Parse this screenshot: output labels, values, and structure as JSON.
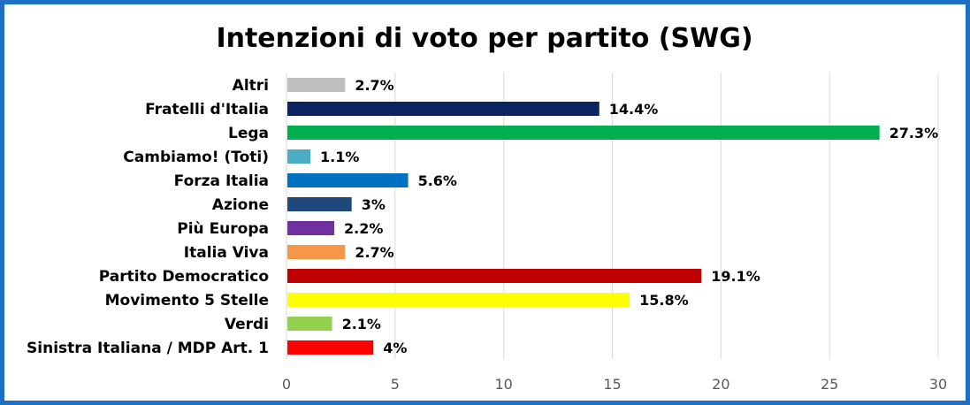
{
  "chart_data": {
    "type": "bar",
    "orientation": "horizontal",
    "title": "Intenzioni di voto per partito (SWG)",
    "categories": [
      "Altri",
      "Fratelli d'Italia",
      "Lega",
      "Cambiamo! (Toti)",
      "Forza Italia",
      "Azione",
      "Più Europa",
      "Italia Viva",
      "Partito Democratico",
      "Movimento 5 Stelle",
      "Verdi",
      "Sinistra Italiana / MDP Art. 1"
    ],
    "values": [
      2.7,
      14.4,
      27.3,
      1.1,
      5.6,
      3,
      2.2,
      2.7,
      19.1,
      15.8,
      2.1,
      4
    ],
    "labels": [
      "2.7%",
      "14.4%",
      "27.3%",
      "1.1%",
      "5.6%",
      "3%",
      "2.2%",
      "2.7%",
      "19.1%",
      "15.8%",
      "2.1%",
      "4%"
    ],
    "colors": [
      "#bfbfbf",
      "#0d2361",
      "#00b050",
      "#4bacc6",
      "#0070c0",
      "#1f497d",
      "#7030a0",
      "#f79646",
      "#c00000",
      "#ffff00",
      "#92d050",
      "#ff0000"
    ],
    "xlim": [
      0,
      30
    ],
    "xticks": [
      0,
      5,
      10,
      15,
      20,
      25,
      30
    ],
    "xlabel": "",
    "ylabel": "",
    "grid": true,
    "border_color": "#1f6fc5"
  }
}
